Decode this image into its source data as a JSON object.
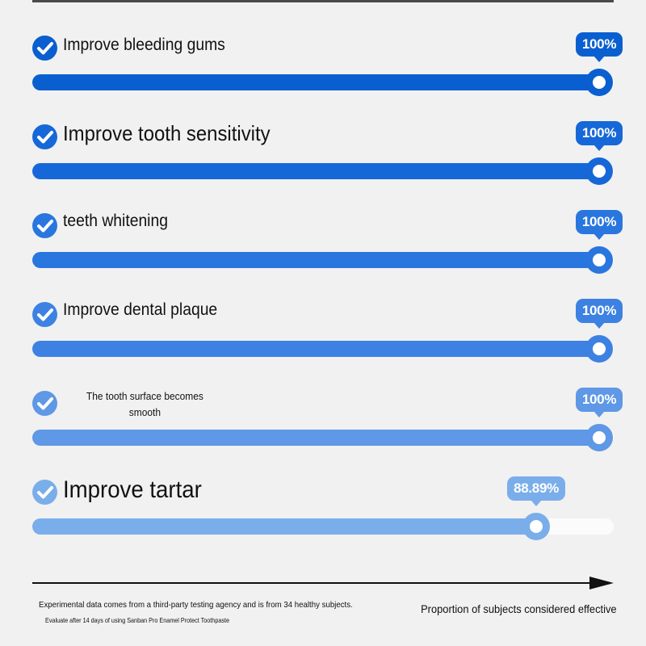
{
  "chart_data": {
    "type": "bar",
    "orientation": "horizontal",
    "categories": [
      "Improve bleeding gums",
      "Improve tooth sensitivity",
      "teeth whitening",
      "Improve dental plaque",
      "The tooth surface becomes smooth",
      "Improve tartar"
    ],
    "values": [
      100,
      100,
      100,
      100,
      100,
      88.89
    ],
    "value_labels": [
      "100%",
      "100%",
      "100%",
      "100%",
      "100%",
      "88.89%"
    ],
    "xlim": [
      0,
      100
    ],
    "xlabel": "Proportion of subjects considered effective",
    "grid": false,
    "legend": "none",
    "colors": [
      "#0a5fd0",
      "#1668d8",
      "#2a76df",
      "#3d82e2",
      "#5e98e6",
      "#7aaeea"
    ]
  },
  "footnote": "Experimental data comes from a third-party testing agency and is from 34 healthy subjects.",
  "footnote_small": "Evaluate after 14 days of using Sanban Pro Enamel Protect Toothpaste",
  "icons": {
    "row_marker": "check-circle-icon",
    "axis_arrow": "arrow-right-icon"
  }
}
